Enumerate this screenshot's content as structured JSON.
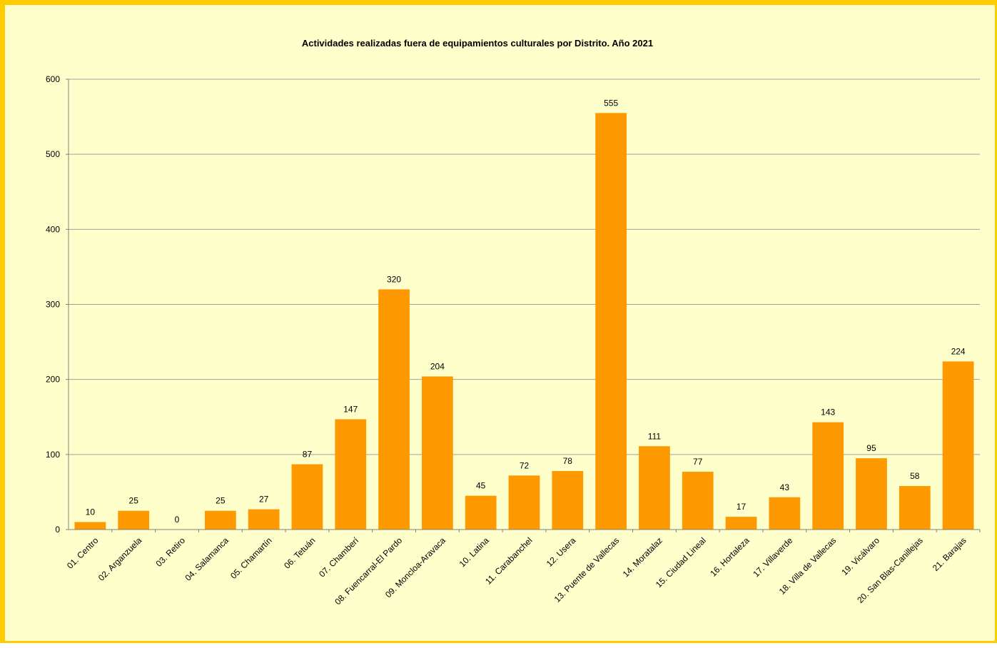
{
  "chart_data": {
    "type": "bar",
    "title": "Actividades realizadas fuera de equipamientos culturales por Distrito. Año 2021",
    "xlabel": "",
    "ylabel": "",
    "ylim": [
      0,
      600
    ],
    "yticks": [
      0,
      100,
      200,
      300,
      400,
      500,
      600
    ],
    "grid": true,
    "legend": "none",
    "categories": [
      "01. Centro",
      "02. Arganzuela",
      "03. Retiro",
      "04. Salamanca",
      "05. Chamartín",
      "06. Tetuán",
      "07. Chamberí",
      "08. Fuencarral-El Pardo",
      "09. Moncloa-Aravaca",
      "10. Latina",
      "11. Carabanchel",
      "12. Usera",
      "13. Puente de Vallecas",
      "14. Moratalaz",
      "15. Ciudad Lineal",
      "16. Hortaleza",
      "17. Villaverde",
      "18. Villa de Vallecas",
      "19. Vicálvaro",
      "20. San Blas-Canillejas",
      "21. Barajas"
    ],
    "values": [
      10,
      25,
      0,
      25,
      27,
      87,
      147,
      320,
      204,
      45,
      72,
      78,
      555,
      111,
      77,
      17,
      43,
      143,
      95,
      58,
      224
    ],
    "colors": {
      "bar": "#ff9900",
      "gridline": "#a0a0a0",
      "axis": "#808080",
      "plot_background": "#ffffcc",
      "frame_border": "#ffcc00"
    }
  }
}
